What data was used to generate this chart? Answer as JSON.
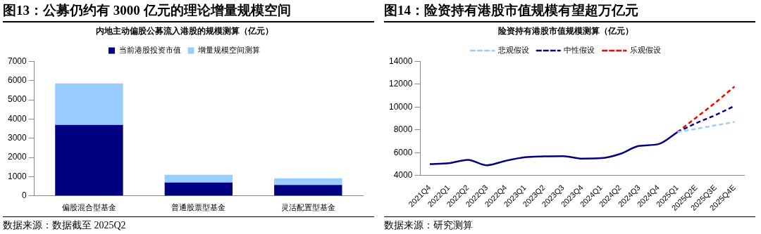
{
  "chart_data": [
    {
      "type": "bar",
      "title": "图13：公募仍约有 3000 亿元的理论增量规模空间",
      "subtitle": "内地主动偏股公募流入港股的规模测算（亿元）",
      "categories": [
        "偏股混合型基金",
        "普通股票型基金",
        "灵活配置型基金"
      ],
      "stacked": true,
      "series": [
        {
          "name": "当前港股投资市值",
          "color": "#000080",
          "values": [
            3700,
            700,
            570
          ]
        },
        {
          "name": "增量规模空间测算",
          "color": "#99ccff",
          "values": [
            2150,
            400,
            350
          ]
        }
      ],
      "ylim": [
        0,
        7000
      ],
      "yticks": [
        0,
        1000,
        2000,
        3000,
        4000,
        5000,
        6000,
        7000
      ],
      "grid": false,
      "legend": "top",
      "annotations": [
        "数据来源：数据截至 2025Q2"
      ]
    },
    {
      "type": "line",
      "title": "图14：险资持有港股市值规模有望超万亿元",
      "subtitle": "险资持有港股市值规模测算（亿元）",
      "categories": [
        "2021Q4",
        "2022Q1",
        "2022Q2",
        "2022Q3",
        "2022Q4",
        "2023Q1",
        "2023Q2",
        "2023Q3",
        "2023Q4",
        "2024Q1",
        "2024Q2",
        "2024Q3",
        "2024Q4",
        "2025Q1",
        "2025Q2E",
        "2025Q3E",
        "2025Q4E"
      ],
      "series": [
        {
          "color": "#000080",
          "line_style": "solid",
          "values": [
            5000,
            5080,
            5380,
            4900,
            5300,
            5600,
            5680,
            5700,
            5480,
            5520,
            5900,
            6600,
            6750,
            7800,
            null,
            null,
            null
          ]
        },
        {
          "name": "悲观假设",
          "color": "#99ccff",
          "line_style": "dashed",
          "values": [
            null,
            null,
            null,
            null,
            null,
            null,
            null,
            null,
            null,
            null,
            null,
            null,
            null,
            7800,
            8100,
            8400,
            8700
          ]
        },
        {
          "name": "中性假设",
          "color": "#000080",
          "line_style": "dashed",
          "values": [
            null,
            null,
            null,
            null,
            null,
            null,
            null,
            null,
            null,
            null,
            null,
            null,
            null,
            7800,
            8600,
            9300,
            10100
          ]
        },
        {
          "name": "乐观假设",
          "color": "#ff0000",
          "line_style": "dashed",
          "values": [
            null,
            null,
            null,
            null,
            null,
            null,
            null,
            null,
            null,
            null,
            null,
            null,
            null,
            7800,
            9100,
            10400,
            11800
          ]
        }
      ],
      "ylim": [
        4000,
        14000
      ],
      "yticks": [
        4000,
        6000,
        8000,
        10000,
        12000,
        14000
      ],
      "grid": false,
      "legend": "top",
      "marker": "none",
      "annotations": [
        "数据来源：研究测算"
      ]
    }
  ]
}
